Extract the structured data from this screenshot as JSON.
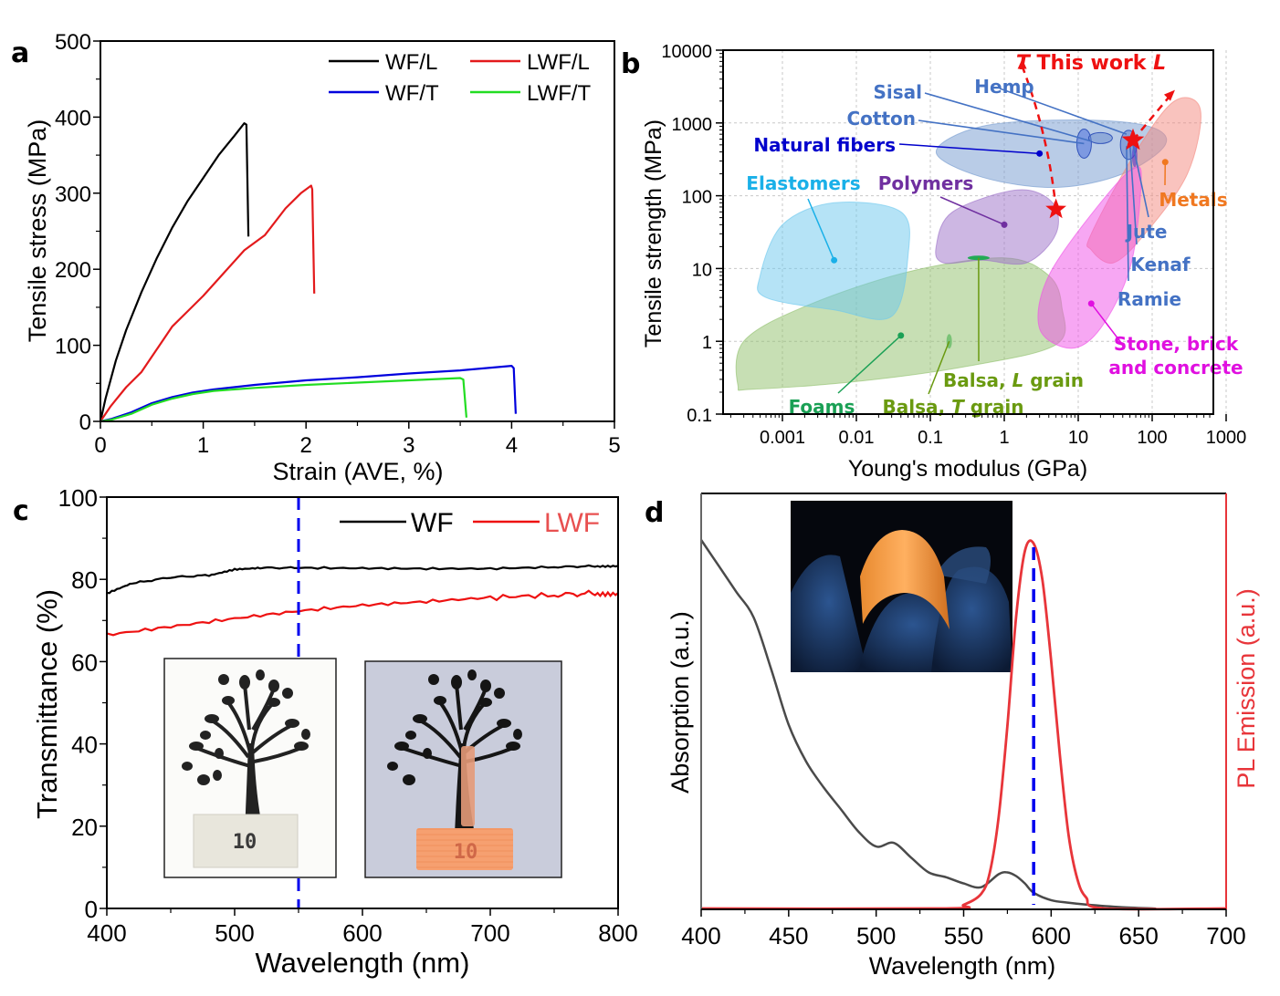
{
  "panels": {
    "a": {
      "letter": "a"
    },
    "b": {
      "letter": "b"
    },
    "c": {
      "letter": "c"
    },
    "d": {
      "letter": "d"
    }
  },
  "chart_data": [
    {
      "id": "a",
      "type": "line",
      "xlabel": "Strain (AVE, %)",
      "ylabel": "Tensile stress (MPa)",
      "xlim": [
        0,
        5
      ],
      "ylim": [
        0,
        500
      ],
      "xticks": [
        0,
        1,
        2,
        3,
        4,
        5
      ],
      "yticks": [
        0,
        100,
        200,
        300,
        400,
        500
      ],
      "legend_position": "top-right",
      "series": [
        {
          "name": "WF/L",
          "color": "#000000",
          "x": [
            0,
            0.05,
            0.15,
            0.25,
            0.4,
            0.55,
            0.7,
            0.85,
            1.0,
            1.15,
            1.3,
            1.4,
            1.42,
            1.44
          ],
          "y": [
            0,
            30,
            80,
            120,
            170,
            215,
            255,
            290,
            320,
            350,
            375,
            392,
            390,
            243
          ]
        },
        {
          "name": "LWF/L",
          "color": "#e31a1c",
          "x": [
            0,
            0.1,
            0.25,
            0.4,
            0.55,
            0.7,
            0.85,
            1.0,
            1.2,
            1.4,
            1.6,
            1.8,
            1.95,
            2.05,
            2.06,
            2.08
          ],
          "y": [
            0,
            20,
            45,
            65,
            95,
            125,
            145,
            165,
            195,
            225,
            245,
            280,
            300,
            310,
            305,
            168
          ]
        },
        {
          "name": "WF/T",
          "color": "#0000dd",
          "x": [
            0,
            0.1,
            0.3,
            0.5,
            0.7,
            0.9,
            1.1,
            1.5,
            2.0,
            2.5,
            3.0,
            3.5,
            4.0,
            4.02,
            4.04
          ],
          "y": [
            0,
            3,
            12,
            24,
            32,
            38,
            42,
            48,
            54,
            58,
            63,
            67,
            73,
            70,
            10
          ]
        },
        {
          "name": "LWF/T",
          "color": "#22dd22",
          "x": [
            0,
            0.1,
            0.3,
            0.5,
            0.7,
            0.9,
            1.1,
            1.5,
            2.0,
            2.5,
            3.0,
            3.5,
            3.53,
            3.56
          ],
          "y": [
            0,
            2,
            10,
            22,
            30,
            36,
            40,
            44,
            48,
            51,
            54,
            57,
            55,
            5
          ]
        }
      ]
    },
    {
      "id": "b",
      "type": "scatter",
      "subtype": "material-property-map (log-log bubble regions)",
      "xlabel": "Young's modulus (GPa)",
      "ylabel": "Tensile strength (MPa)",
      "xscale": "log",
      "yscale": "log",
      "xlim": [
        0.0002,
        7000
      ],
      "ylim": [
        0.1,
        10000
      ],
      "xticks": [
        0.001,
        0.01,
        0.1,
        1,
        10,
        100,
        1000
      ],
      "xtick_labels": [
        "0.001",
        "0.01",
        "0.1",
        "1",
        "10",
        "100",
        "1000"
      ],
      "yticks": [
        0.1,
        1,
        10,
        100,
        1000,
        10000
      ],
      "ytick_labels": [
        "0.1",
        "1",
        "10",
        "100",
        "1000",
        "10000"
      ],
      "grid": true,
      "regions": [
        {
          "name": "Foams",
          "color": "#8fc06a",
          "label_color": "#1aa055",
          "outline": [
            [
              0.00025,
              0.25
            ],
            [
              0.0003,
              1.0
            ],
            [
              0.002,
              3
            ],
            [
              0.05,
              9
            ],
            [
              1,
              14
            ],
            [
              4,
              8
            ],
            [
              6,
              3
            ],
            [
              5,
              0.9
            ],
            [
              0.3,
              0.45
            ],
            [
              0.01,
              0.28
            ],
            [
              0.0004,
              0.22
            ]
          ],
          "marker": [
            0.04,
            1.2
          ],
          "label_at": [
            0.006,
            0.11
          ]
        },
        {
          "name": "Elastomers",
          "color": "#6cc8ee",
          "label_color": "#1ab0e8",
          "outline": [
            [
              0.0005,
              8
            ],
            [
              0.001,
              40
            ],
            [
              0.005,
              80
            ],
            [
              0.04,
              60
            ],
            [
              0.05,
              15
            ],
            [
              0.03,
              2.2
            ],
            [
              0.005,
              2.7
            ],
            [
              0.0006,
              4
            ]
          ],
          "marker": [
            0.005,
            13
          ],
          "label_at": [
            0.005,
            150
          ]
        },
        {
          "name": "Polymers",
          "color": "#9b6fc8",
          "label_color": "#7030a0",
          "outline": [
            [
              0.12,
              20
            ],
            [
              0.2,
              60
            ],
            [
              1.5,
              120
            ],
            [
              4.5,
              80
            ],
            [
              5,
              30
            ],
            [
              2,
              12
            ],
            [
              0.5,
              13
            ],
            [
              0.15,
              12
            ]
          ],
          "marker": [
            1.0,
            40
          ],
          "label_at": [
            0.6,
            150
          ]
        },
        {
          "name": "Natural fibers",
          "color": "#7399cf",
          "label_color": "#0000cc",
          "outline": [
            [
              0.12,
              400
            ],
            [
              0.5,
              900
            ],
            [
              10,
              1100
            ],
            [
              90,
              900
            ],
            [
              150,
              500
            ],
            [
              40,
              200
            ],
            [
              5,
              130
            ],
            [
              0.5,
              180
            ]
          ],
          "marker": [
            3,
            380
          ],
          "label_at": [
            0.008,
            400
          ]
        },
        {
          "name": "Metals",
          "color": "#f4877d",
          "label_color": "#f07820",
          "outline": [
            [
              15,
              30
            ],
            [
              60,
              400
            ],
            [
              200,
              2000
            ],
            [
              450,
              1500
            ],
            [
              300,
              200
            ],
            [
              80,
              30
            ],
            [
              30,
              12
            ],
            [
              15,
              18
            ]
          ],
          "marker": [
            150,
            290
          ],
          "label_at": [
            1500,
            140
          ]
        },
        {
          "name": "Stone, brick and concrete",
          "color": "#f050e8",
          "label_color": "#e010e0",
          "outline": [
            [
              3,
              1.5
            ],
            [
              4,
              8
            ],
            [
              20,
              80
            ],
            [
              60,
              250
            ],
            [
              70,
              120
            ],
            [
              50,
              10
            ],
            [
              20,
              1.5
            ],
            [
              8,
              0.8
            ]
          ],
          "marker": [
            15,
            3.3
          ],
          "label_at": [
            200,
            0.35
          ]
        },
        {
          "name": "Balsa, L grain",
          "color": "#22aa55",
          "label_color": "#6a9a10",
          "marker": [
            0.45,
            14
          ],
          "label_at": [
            1.5,
            0.35
          ]
        },
        {
          "name": "Balsa, T grain",
          "color": "#66bb66",
          "label_color": "#6a9a10",
          "marker": [
            0.18,
            1.0
          ],
          "label_at": [
            0.3,
            0.16
          ]
        }
      ],
      "fiber_labels": [
        {
          "name": "Sisal",
          "point": [
            15,
            560
          ]
        },
        {
          "name": "Cotton",
          "point": [
            12,
            520
          ]
        },
        {
          "name": "Hemp",
          "point": [
            45,
            700
          ]
        },
        {
          "name": "Jute",
          "point": [
            55,
            500
          ]
        },
        {
          "name": "Kenaf",
          "point": [
            50,
            520
          ]
        },
        {
          "name": "Ramie",
          "point": [
            45,
            480
          ]
        }
      ],
      "fiber_label_color": "#4472c4",
      "this_work": {
        "label": "This work",
        "prefix": "T",
        "suffix": "L",
        "color": "#ee1111",
        "points": [
          {
            "name": "T",
            "x": 5,
            "y": 65
          },
          {
            "name": "L",
            "x": 55,
            "y": 580
          }
        ]
      }
    },
    {
      "id": "c",
      "type": "line",
      "xlabel": "Wavelength (nm)",
      "ylabel": "Transmittance (%)",
      "xlim": [
        400,
        800
      ],
      "ylim": [
        0,
        100
      ],
      "xticks": [
        400,
        500,
        600,
        700,
        800
      ],
      "yticks": [
        0,
        20,
        40,
        60,
        80,
        100
      ],
      "legend_position": "top-right",
      "vline": {
        "x": 550,
        "color": "#0000ee",
        "style": "dashed"
      },
      "series": [
        {
          "name": "WF",
          "color": "#000000",
          "x": [
            400,
            420,
            450,
            480,
            500,
            520,
            550,
            600,
            650,
            700,
            750,
            780,
            800
          ],
          "y": [
            76.5,
            79,
            80.5,
            81,
            82.5,
            82.8,
            82.8,
            82.7,
            82.6,
            82.6,
            83,
            83.2,
            83.3
          ]
        },
        {
          "name": "LWF",
          "color": "#ee1111",
          "x": [
            400,
            450,
            500,
            550,
            600,
            650,
            700,
            750,
            780,
            800
          ],
          "y": [
            66.5,
            68.5,
            70.5,
            72.3,
            73.7,
            74.6,
            75.6,
            76.2,
            76.6,
            76.7
          ]
        }
      ],
      "insets": [
        {
          "name": "tree-print-under-WF",
          "caption_text": "10"
        },
        {
          "name": "tree-print-under-LWF-luminescent",
          "caption_text": "10"
        }
      ]
    },
    {
      "id": "d",
      "type": "line",
      "xlabel": "Wavelength (nm)",
      "ylabel": "Absorption (a.u.)",
      "ylabel_right": "PL Emission (a.u.)",
      "xlim": [
        400,
        700
      ],
      "ylim": [
        0,
        1
      ],
      "xticks": [
        400,
        450,
        500,
        550,
        600,
        650,
        700
      ],
      "vline": {
        "x": 590,
        "color": "#0000ee",
        "style": "dashed"
      },
      "series": [
        {
          "name": "Absorption",
          "color": "#4a4a4a",
          "axis": "left",
          "x": [
            400,
            410,
            420,
            430,
            440,
            450,
            460,
            470,
            480,
            490,
            500,
            510,
            520,
            530,
            540,
            550,
            560,
            570,
            575,
            580,
            585,
            590,
            600,
            610,
            620,
            640,
            660
          ],
          "y": [
            1.0,
            0.93,
            0.86,
            0.79,
            0.65,
            0.5,
            0.4,
            0.33,
            0.27,
            0.21,
            0.17,
            0.18,
            0.14,
            0.1,
            0.087,
            0.07,
            0.06,
            0.095,
            0.1,
            0.09,
            0.07,
            0.045,
            0.025,
            0.018,
            0.013,
            0.006,
            0.002
          ]
        },
        {
          "name": "PL Emission",
          "color": "#e8353a",
          "axis": "right",
          "x": [
            400,
            540,
            550,
            560,
            565,
            570,
            575,
            580,
            585,
            590,
            595,
            600,
            605,
            610,
            615,
            620,
            630,
            700
          ],
          "y": [
            0,
            0,
            0.01,
            0.04,
            0.1,
            0.25,
            0.5,
            0.8,
            0.98,
            1.0,
            0.9,
            0.68,
            0.42,
            0.2,
            0.08,
            0.03,
            0.0,
            0.0
          ]
        }
      ],
      "inset": {
        "name": "flexible-luminescent-film-photo"
      }
    }
  ]
}
